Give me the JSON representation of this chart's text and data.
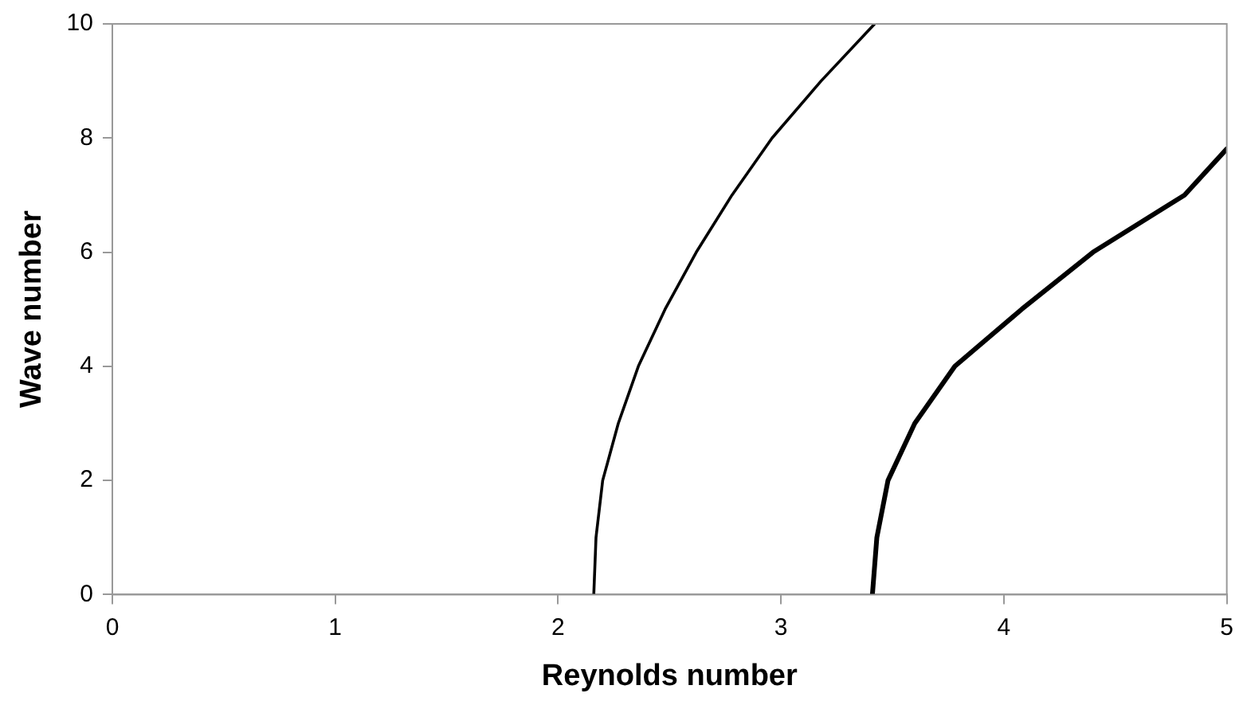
{
  "chart_data": {
    "type": "line",
    "xlabel": "Reynolds number",
    "ylabel": "Wave number",
    "xlim": [
      0,
      5
    ],
    "ylim": [
      0,
      10
    ],
    "xticks": [
      0,
      1,
      2,
      3,
      4,
      5
    ],
    "yticks": [
      0,
      2,
      4,
      6,
      8,
      10
    ],
    "grid": false,
    "legend": false,
    "marker": "none",
    "line_style": "solid",
    "series": [
      {
        "color": "#000000",
        "x": [
          2.16,
          2.17,
          2.2,
          2.27,
          2.36,
          2.48,
          2.62,
          2.78,
          2.96,
          3.18,
          3.42
        ],
        "values": [
          0,
          1,
          2,
          3,
          4,
          5,
          6,
          7,
          8,
          9,
          10
        ]
      },
      {
        "color": "#000000",
        "x": [
          3.41,
          3.43,
          3.48,
          3.6,
          3.78,
          4.08,
          4.4,
          4.81,
          5.0
        ],
        "values": [
          0,
          1,
          2,
          3,
          4,
          5,
          6,
          7,
          7.81
        ]
      }
    ]
  }
}
